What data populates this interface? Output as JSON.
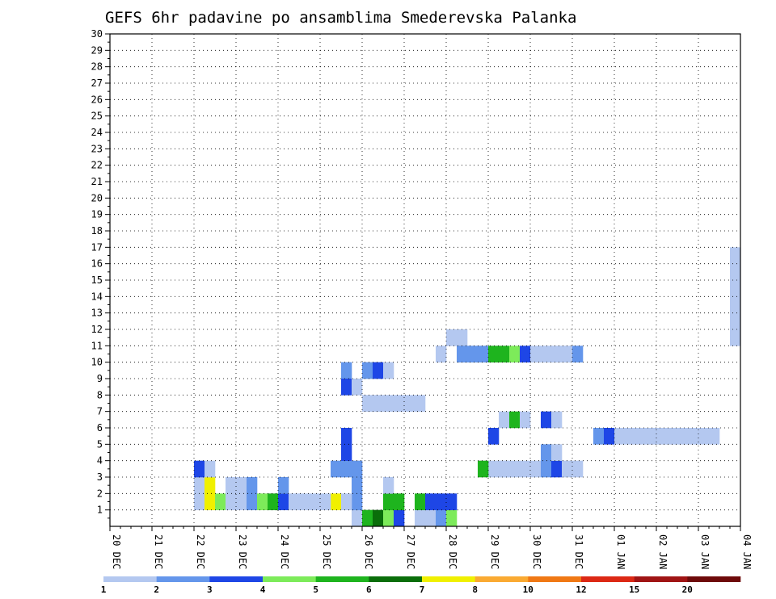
{
  "chart_data": {
    "type": "heatmap",
    "title": "GEFS 6hr padavine po ansamblima Smederevska Palanka",
    "x_tick_labels": [
      "20 DEC",
      "21 DEC",
      "22 DEC",
      "23 DEC",
      "24 DEC",
      "25 DEC",
      "26 DEC",
      "27 DEC",
      "28 DEC",
      "29 DEC",
      "30 DEC",
      "31 DEC",
      "01 JAN",
      "02 JAN",
      "03 JAN",
      "04 JAN"
    ],
    "y_tick_labels": [
      "1",
      "2",
      "3",
      "4",
      "5",
      "6",
      "7",
      "8",
      "9",
      "10",
      "11",
      "12",
      "13",
      "14",
      "15",
      "16",
      "17",
      "18",
      "19",
      "20",
      "21",
      "22",
      "23",
      "24",
      "25",
      "26",
      "27",
      "28",
      "29",
      "30"
    ],
    "ylim": [
      0,
      30
    ],
    "x_steps_per_day": 4,
    "x_steps_total": 60,
    "grid": true,
    "colorbar": {
      "placement": "bottom",
      "colors": [
        "#b4c8f0",
        "#6496eb",
        "#1e46e6",
        "#7deb5a",
        "#1eb41e",
        "#0a6e0a",
        "#f0f000",
        "#faaa32",
        "#f07814",
        "#dc2814",
        "#a01414",
        "#6e0a0a"
      ],
      "tick_labels": [
        "1",
        "2",
        "3",
        "4",
        "5",
        "6",
        "7",
        "8",
        "10",
        "12",
        "15",
        "20"
      ]
    },
    "cells": [
      [
        23,
        0,
        1
      ],
      [
        23,
        1,
        2
      ],
      [
        23,
        2,
        2
      ],
      [
        23,
        3,
        2
      ],
      [
        24,
        0,
        5
      ],
      [
        25,
        0,
        6
      ],
      [
        26,
        0,
        4
      ],
      [
        27,
        0,
        3
      ],
      [
        29,
        0,
        1
      ],
      [
        30,
        0,
        1
      ],
      [
        31,
        0,
        2
      ],
      [
        32,
        0,
        4
      ],
      [
        32,
        1,
        3
      ],
      [
        21,
        1,
        7
      ],
      [
        21,
        3,
        2
      ],
      [
        22,
        1,
        1
      ],
      [
        22,
        3,
        2
      ],
      [
        22,
        4,
        3
      ],
      [
        22,
        5,
        3
      ],
      [
        26,
        1,
        5
      ],
      [
        26,
        2,
        1
      ],
      [
        27,
        1,
        5
      ],
      [
        29,
        1,
        5
      ],
      [
        30,
        1,
        3
      ],
      [
        31,
        1,
        3
      ],
      [
        8,
        1,
        1
      ],
      [
        8,
        2,
        1
      ],
      [
        8,
        3,
        3
      ],
      [
        9,
        1,
        7
      ],
      [
        9,
        2,
        7
      ],
      [
        9,
        3,
        1
      ],
      [
        10,
        1,
        4
      ],
      [
        11,
        1,
        1
      ],
      [
        11,
        2,
        1
      ],
      [
        12,
        1,
        1
      ],
      [
        12,
        2,
        1
      ],
      [
        13,
        1,
        2
      ],
      [
        13,
        2,
        2
      ],
      [
        14,
        1,
        4
      ],
      [
        15,
        1,
        5
      ],
      [
        16,
        1,
        3
      ],
      [
        16,
        2,
        2
      ],
      [
        17,
        1,
        1
      ],
      [
        18,
        1,
        1
      ],
      [
        19,
        1,
        1
      ],
      [
        20,
        1,
        1
      ],
      [
        36,
        3,
        1
      ],
      [
        37,
        3,
        1
      ],
      [
        38,
        3,
        1
      ],
      [
        39,
        3,
        1
      ],
      [
        40,
        3,
        1
      ],
      [
        41,
        3,
        2
      ],
      [
        41,
        4,
        2
      ],
      [
        42,
        3,
        3
      ],
      [
        42,
        4,
        1
      ],
      [
        43,
        3,
        1
      ],
      [
        44,
        3,
        1
      ],
      [
        35,
        3,
        5
      ],
      [
        37,
        3,
        1
      ],
      [
        36,
        5,
        3
      ],
      [
        37,
        6,
        1
      ],
      [
        38,
        6,
        5
      ],
      [
        39,
        6,
        1
      ],
      [
        41,
        6,
        3
      ],
      [
        42,
        6,
        1
      ],
      [
        22,
        9,
        2
      ],
      [
        22,
        8,
        3
      ],
      [
        23,
        8,
        1
      ],
      [
        24,
        9,
        2
      ],
      [
        25,
        9,
        3
      ],
      [
        26,
        9,
        1
      ],
      [
        24,
        7,
        1
      ],
      [
        25,
        7,
        1
      ],
      [
        26,
        7,
        1
      ],
      [
        27,
        7,
        1
      ],
      [
        28,
        7,
        1
      ],
      [
        29,
        7,
        1
      ],
      [
        31,
        10,
        1
      ],
      [
        32,
        11,
        1
      ],
      [
        33,
        11,
        1
      ],
      [
        33,
        10,
        2
      ],
      [
        34,
        10,
        2
      ],
      [
        35,
        10,
        2
      ],
      [
        36,
        10,
        5
      ],
      [
        37,
        10,
        5
      ],
      [
        38,
        10,
        4
      ],
      [
        39,
        10,
        3
      ],
      [
        40,
        10,
        1
      ],
      [
        41,
        10,
        1
      ],
      [
        42,
        10,
        1
      ],
      [
        43,
        10,
        1
      ],
      [
        44,
        10,
        2
      ],
      [
        46,
        5,
        2
      ],
      [
        47,
        5,
        3
      ],
      [
        48,
        5,
        1
      ],
      [
        49,
        5,
        1
      ],
      [
        50,
        5,
        1
      ],
      [
        51,
        5,
        1
      ],
      [
        52,
        5,
        1
      ],
      [
        53,
        5,
        1
      ],
      [
        54,
        5,
        1
      ],
      [
        55,
        5,
        1
      ],
      [
        56,
        5,
        1
      ],
      [
        57,
        5,
        1
      ],
      [
        59,
        11,
        1
      ],
      [
        59,
        12,
        1
      ],
      [
        59,
        13,
        1
      ],
      [
        59,
        14,
        1
      ],
      [
        59,
        15,
        1
      ],
      [
        59,
        16,
        1
      ]
    ]
  }
}
